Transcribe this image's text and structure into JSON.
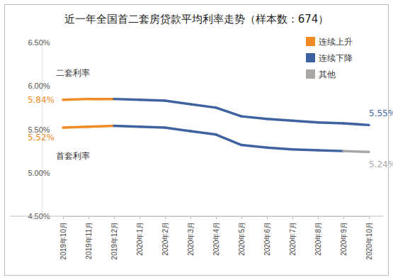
{
  "chart_data": {
    "type": "line",
    "title": "近一年全国首二套房贷款平均利率走势（样本数：674）",
    "categories": [
      "2019年10月",
      "2019年11月",
      "2019年12月",
      "2020年1月",
      "2020年2月",
      "2020年3月",
      "2020年4月",
      "2020年5月",
      "2020年6月",
      "2020年7月",
      "2020年8月",
      "2020年9月",
      "2020年10月"
    ],
    "series": [
      {
        "name": "二套利率",
        "color": "#3e63a0",
        "values": [
          5.84,
          5.85,
          5.85,
          5.84,
          5.83,
          5.79,
          5.75,
          5.65,
          5.62,
          5.6,
          5.58,
          5.57,
          5.55
        ],
        "colors": [
          "#f08a24",
          "#f08a24",
          "#f08a24",
          "#3e63a0",
          "#3e63a0",
          "#3e63a0",
          "#3e63a0",
          "#3e63a0",
          "#3e63a0",
          "#3e63a0",
          "#3e63a0",
          "#3e63a0",
          "#3e63a0"
        ],
        "value_labels": [
          "5.84%",
          null,
          null,
          null,
          null,
          null,
          null,
          null,
          null,
          null,
          null,
          null,
          "5.55%"
        ]
      },
      {
        "name": "首套利率",
        "color": "#3e63a0",
        "values": [
          5.52,
          5.53,
          5.54,
          5.53,
          5.52,
          5.48,
          5.44,
          5.32,
          5.29,
          5.27,
          5.26,
          5.25,
          5.24
        ],
        "colors": [
          "#f08a24",
          "#f08a24",
          "#f08a24",
          "#3e63a0",
          "#3e63a0",
          "#3e63a0",
          "#3e63a0",
          "#3e63a0",
          "#3e63a0",
          "#3e63a0",
          "#3e63a0",
          "#3e63a0",
          "#aaa6a4"
        ],
        "value_labels": [
          "5.52%",
          null,
          null,
          null,
          null,
          null,
          null,
          null,
          null,
          null,
          null,
          null,
          "5.24%"
        ]
      }
    ],
    "color_key": [
      {
        "name": "连续上升",
        "color": "#f08a24"
      },
      {
        "name": "连续下降",
        "color": "#3e63a0"
      },
      {
        "name": "其他",
        "color": "#aaa6a4"
      }
    ],
    "legend": "top-right",
    "grid": false,
    "ylim": [
      4.5,
      6.5
    ],
    "yticks": [
      {
        "value": 4.5,
        "label": "4.50%"
      },
      {
        "value": 5.0,
        "label": "5.00%"
      },
      {
        "value": 5.5,
        "label": "5.50%"
      },
      {
        "value": 6.0,
        "label": "6.00%"
      },
      {
        "value": 6.5,
        "label": "6.50%"
      }
    ]
  }
}
